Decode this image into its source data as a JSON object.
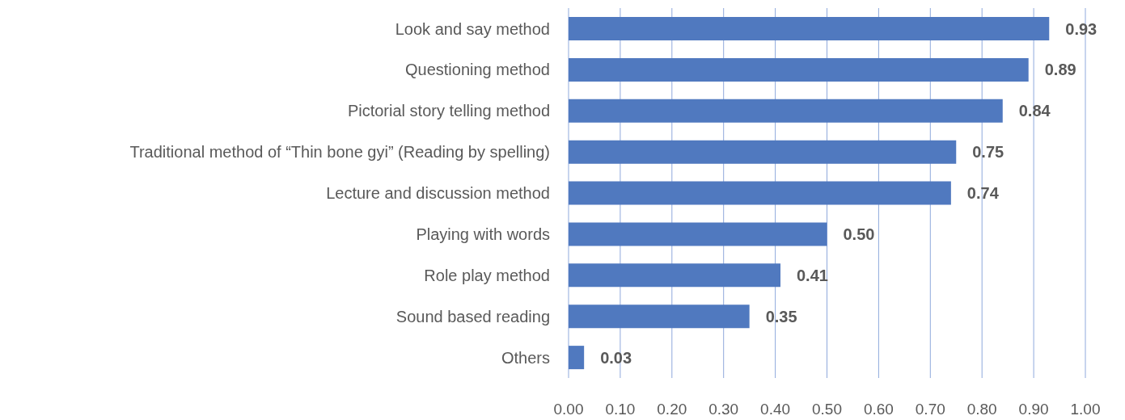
{
  "chart_data": {
    "type": "bar",
    "orientation": "horizontal",
    "categories": [
      "Look and say method",
      "Questioning method",
      "Pictorial story telling method",
      "Traditional method of “Thin bone gyi” (Reading by spelling)",
      "Lecture and discussion method",
      "Playing with words",
      "Role play method",
      "Sound based reading",
      "Others"
    ],
    "values": [
      0.93,
      0.89,
      0.84,
      0.75,
      0.74,
      0.5,
      0.41,
      0.35,
      0.03
    ],
    "value_labels": [
      "0.93",
      "0.89",
      "0.84",
      "0.75",
      "0.74",
      "0.50",
      "0.41",
      "0.35",
      "0.03"
    ],
    "color": "#5079bf",
    "xlim": [
      0,
      1
    ],
    "xticks": [
      {
        "value": 0,
        "label": "0.00"
      },
      {
        "value": 0.1,
        "label": "0.10"
      },
      {
        "value": 0.2,
        "label": "0.20"
      },
      {
        "value": 0.3,
        "label": "0.30"
      },
      {
        "value": 0.4,
        "label": "0.40"
      },
      {
        "value": 0.5,
        "label": "0.50"
      },
      {
        "value": 0.6,
        "label": "0.60"
      },
      {
        "value": 0.7,
        "label": "0.70"
      },
      {
        "value": 0.8,
        "label": "0.80"
      },
      {
        "value": 0.9,
        "label": "0.90"
      },
      {
        "value": 1,
        "label": "1.00"
      }
    ],
    "grid": "x",
    "legend": false
  }
}
